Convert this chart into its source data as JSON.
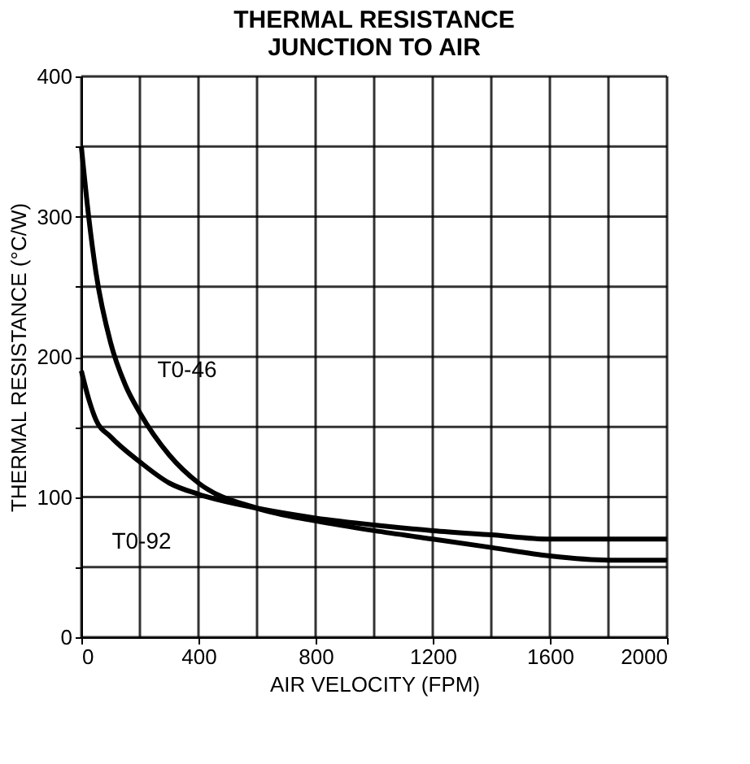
{
  "chart_data": {
    "type": "line",
    "title": "THERMAL RESISTANCE\nJUNCTION TO AIR",
    "xlabel": "AIR VELOCITY (FPM)",
    "ylabel": "THERMAL RESISTANCE (°C/W)",
    "xlim": [
      0,
      2000
    ],
    "xticks": [
      0,
      {
        "value": 200,
        "label": null
      },
      400,
      {
        "value": 600,
        "label": null
      },
      800,
      {
        "value": 1000,
        "label": null
      },
      {
        "value": 1200,
        "label": "1200"
      },
      {
        "value": 1400,
        "label": null
      },
      {
        "value": 1600,
        "label": "1600"
      },
      {
        "value": 1800,
        "label": null
      },
      {
        "value": 2000,
        "label": "2000"
      }
    ],
    "ylim": [
      0,
      400
    ],
    "yticks": [
      0,
      {
        "value": 50,
        "label": null
      },
      100,
      {
        "value": 150,
        "label": null
      },
      200,
      {
        "value": 250,
        "label": null
      },
      300,
      {
        "value": 350,
        "label": null
      },
      400
    ],
    "grid": true,
    "marker": "none",
    "line_style": "solid",
    "legend": false,
    "series": [
      {
        "name": "T0-46",
        "color": "#000000",
        "x": [
          0,
          25,
          50,
          100,
          150,
          200,
          300,
          400,
          600,
          800,
          1000,
          1200,
          1400,
          1600,
          1800,
          2000
        ],
        "values": [
          350,
          300,
          260,
          210,
          180,
          160,
          130,
          110,
          92,
          83,
          76,
          70,
          64,
          58,
          55,
          55
        ]
      },
      {
        "name": "T0-92",
        "color": "#000000",
        "x": [
          0,
          25,
          50,
          100,
          200,
          300,
          400,
          600,
          800,
          1000,
          1200,
          1400,
          1600,
          1800,
          2000
        ],
        "values": [
          190,
          170,
          155,
          143,
          125,
          110,
          102,
          92,
          85,
          80,
          76,
          73,
          70,
          70,
          70
        ]
      }
    ]
  }
}
